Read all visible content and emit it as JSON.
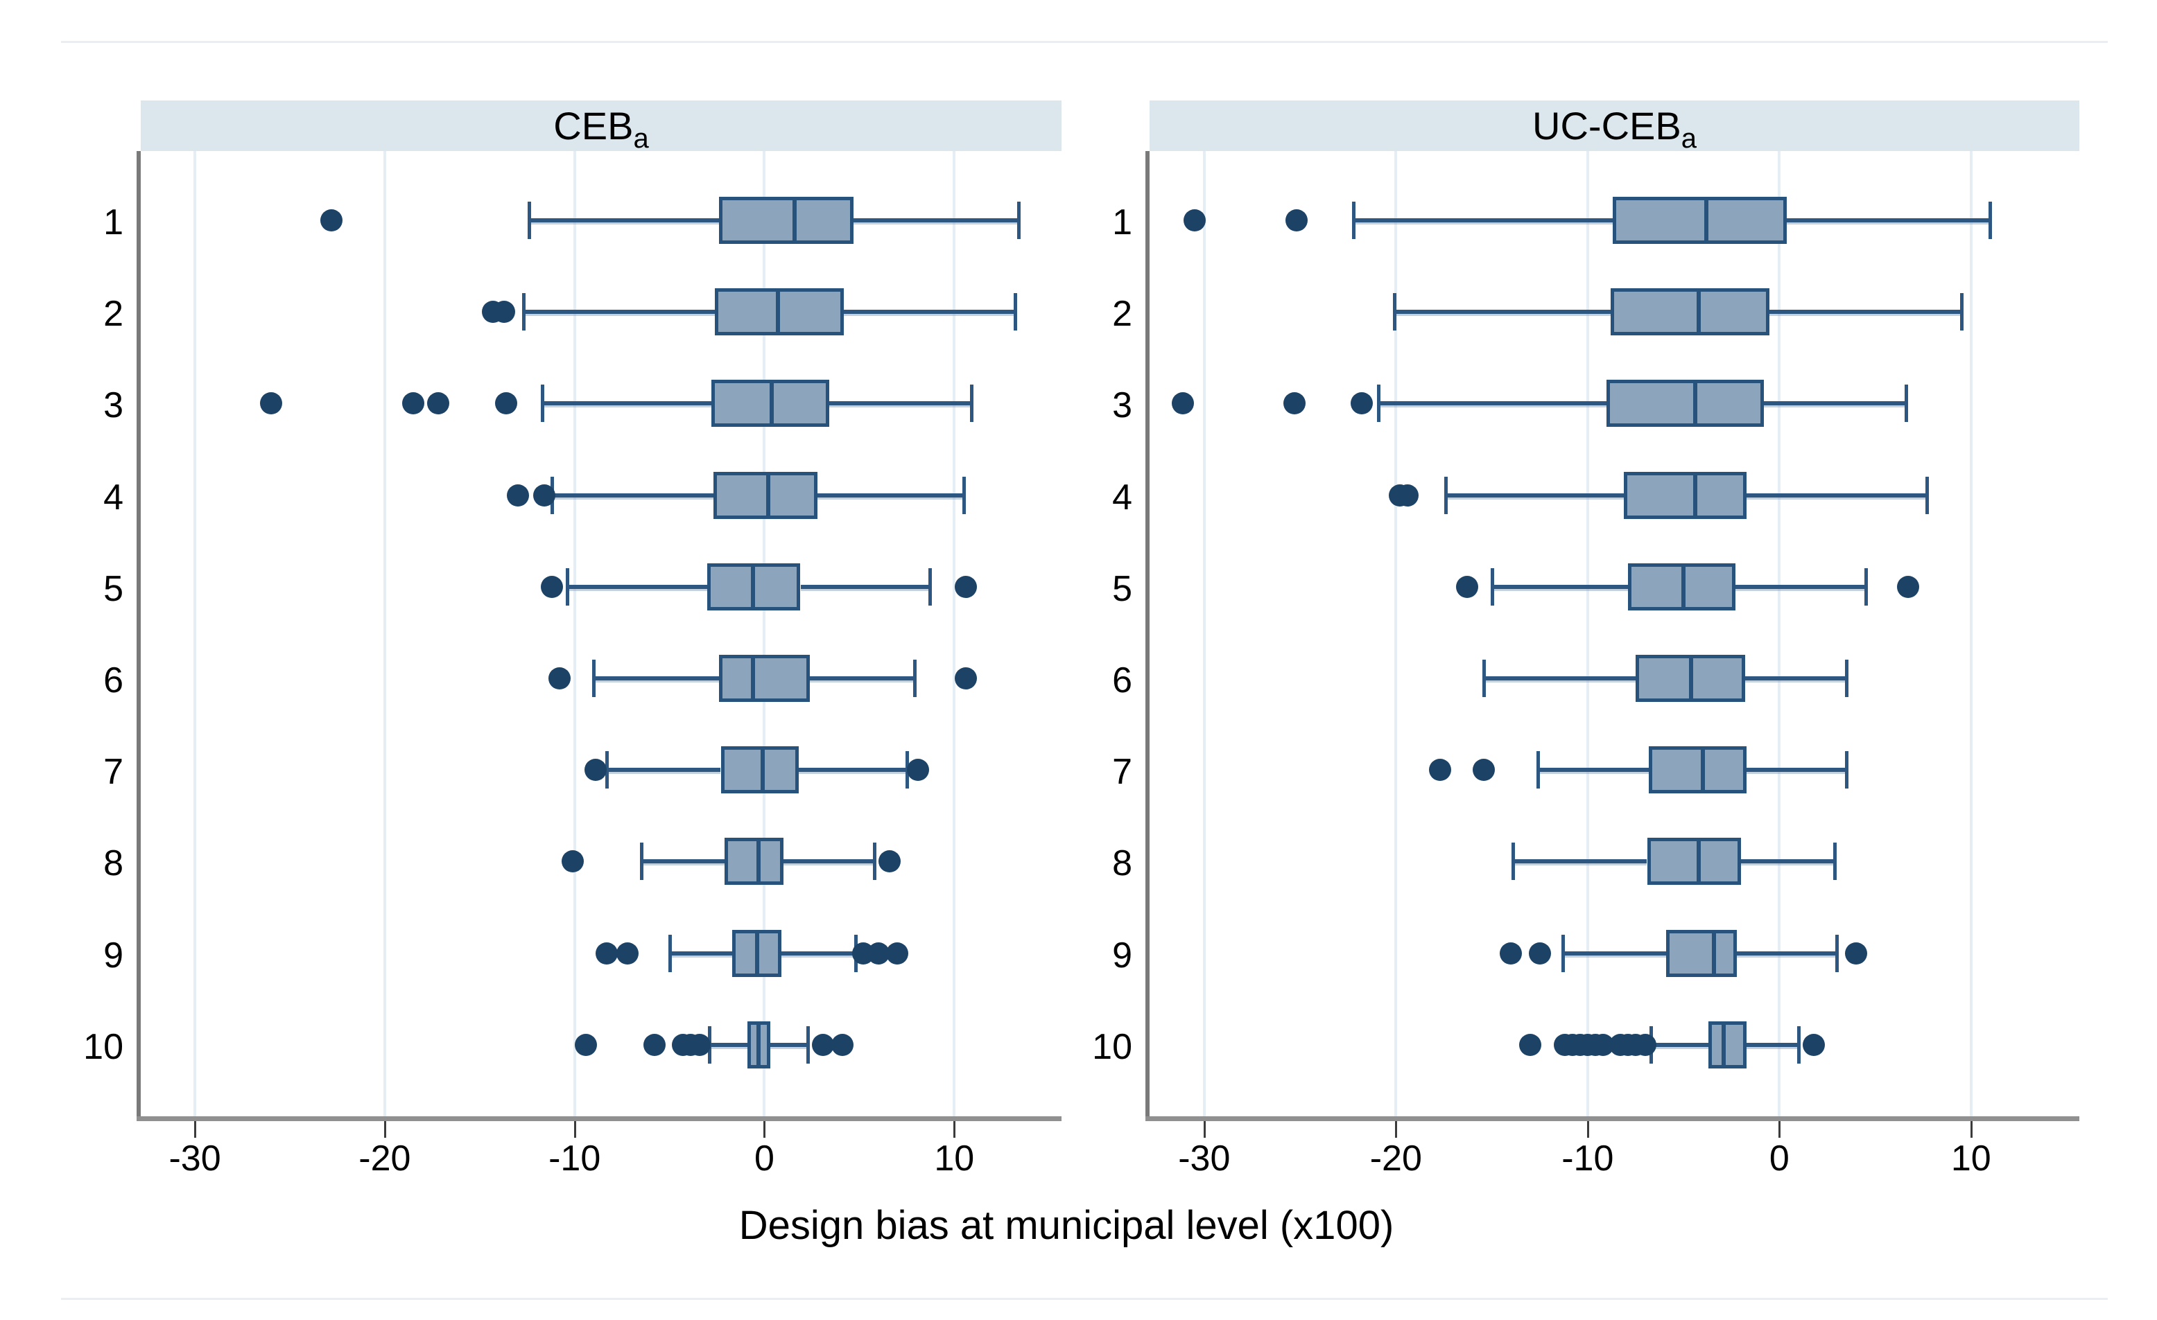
{
  "chart_data": {
    "type": "boxplot",
    "orientation": "horizontal",
    "xlabel": "Design bias at municipal level (x100)",
    "categories": [
      "1",
      "2",
      "3",
      "4",
      "5",
      "6",
      "7",
      "8",
      "9",
      "10"
    ],
    "x_ticks": [
      -30,
      -20,
      -10,
      0,
      10
    ],
    "x_tick_labels": [
      "-30",
      "-20",
      "-10",
      "0",
      "10"
    ],
    "xlim": [
      -32.85,
      15.65
    ],
    "grid": true,
    "legend": "none",
    "colors": {
      "header_bg": "#dce7ed",
      "box_fill": "#8ca4bc",
      "box_border": "#26527c",
      "median": "#26527c",
      "whisker": "#2d5780",
      "outlier": "#1c4266",
      "gridline": "#e6eef5",
      "y_axis": "#7a7a7a",
      "x_axis": "#909090",
      "tick": "#3c3c3c",
      "text": "#000000",
      "figure_border": "#e9eef2"
    },
    "panels": [
      {
        "title_main": "CEB",
        "title_sub": "a",
        "rows": [
          {
            "cat": "1",
            "whislo": -12.4,
            "q1": -2.4,
            "med": 1.6,
            "q3": 4.7,
            "whishi": 13.4,
            "outliers": [
              -22.8
            ]
          },
          {
            "cat": "2",
            "whislo": -12.7,
            "q1": -2.6,
            "med": 0.7,
            "q3": 4.2,
            "whishi": 13.2,
            "outliers": [
              -14.3,
              -13.7
            ]
          },
          {
            "cat": "3",
            "whislo": -11.7,
            "q1": -2.8,
            "med": 0.4,
            "q3": 3.4,
            "whishi": 10.9,
            "outliers": [
              -26.0,
              -18.5,
              -17.2,
              -13.6
            ]
          },
          {
            "cat": "4",
            "whislo": -11.2,
            "q1": -2.7,
            "med": 0.2,
            "q3": 2.8,
            "whishi": 10.5,
            "outliers": [
              -13.0,
              -11.6
            ]
          },
          {
            "cat": "5",
            "whislo": -10.4,
            "q1": -3.0,
            "med": -0.6,
            "q3": 1.9,
            "whishi": 8.7,
            "outliers": [
              -11.2,
              10.6
            ]
          },
          {
            "cat": "6",
            "whislo": -9.0,
            "q1": -2.4,
            "med": -0.6,
            "q3": 2.4,
            "whishi": 7.9,
            "outliers": [
              -10.8,
              10.6
            ]
          },
          {
            "cat": "7",
            "whislo": -8.3,
            "q1": -2.3,
            "med": -0.1,
            "q3": 1.8,
            "whishi": 7.5,
            "outliers": [
              -8.9,
              8.1
            ]
          },
          {
            "cat": "8",
            "whislo": -6.5,
            "q1": -2.1,
            "med": -0.3,
            "q3": 1.0,
            "whishi": 5.8,
            "outliers": [
              -10.1,
              6.6
            ]
          },
          {
            "cat": "9",
            "whislo": -5.0,
            "q1": -1.7,
            "med": -0.4,
            "q3": 0.9,
            "whishi": 4.8,
            "outliers": [
              -8.3,
              -7.2,
              5.2,
              6.0,
              7.0
            ]
          },
          {
            "cat": "10",
            "whislo": -2.9,
            "q1": -0.9,
            "med": -0.3,
            "q3": 0.3,
            "whishi": 2.3,
            "outliers": [
              -9.4,
              -5.8,
              -4.3,
              -3.9,
              -3.4,
              3.1,
              4.1
            ]
          }
        ]
      },
      {
        "title_main": "UC-CEB",
        "title_sub": "a",
        "rows": [
          {
            "cat": "1",
            "whislo": -22.2,
            "q1": -8.7,
            "med": -3.8,
            "q3": 0.4,
            "whishi": 11.0,
            "outliers": [
              -30.5,
              -25.2
            ]
          },
          {
            "cat": "2",
            "whislo": -20.1,
            "q1": -8.8,
            "med": -4.2,
            "q3": -0.5,
            "whishi": 9.5,
            "outliers": []
          },
          {
            "cat": "3",
            "whislo": -20.9,
            "q1": -9.0,
            "med": -4.4,
            "q3": -0.8,
            "whishi": 6.6,
            "outliers": [
              -31.1,
              -25.3,
              -21.8
            ]
          },
          {
            "cat": "4",
            "whislo": -17.4,
            "q1": -8.1,
            "med": -4.4,
            "q3": -1.7,
            "whishi": 7.7,
            "outliers": [
              -19.8,
              -19.4
            ]
          },
          {
            "cat": "5",
            "whislo": -15.0,
            "q1": -7.9,
            "med": -5.0,
            "q3": -2.3,
            "whishi": 4.5,
            "outliers": [
              -16.3,
              6.7
            ]
          },
          {
            "cat": "6",
            "whislo": -15.4,
            "q1": -7.5,
            "med": -4.6,
            "q3": -1.8,
            "whishi": 3.5,
            "outliers": []
          },
          {
            "cat": "7",
            "whislo": -12.6,
            "q1": -6.8,
            "med": -4.0,
            "q3": -1.7,
            "whishi": 3.5,
            "outliers": [
              -17.7,
              -15.4
            ]
          },
          {
            "cat": "8",
            "whislo": -13.9,
            "q1": -6.9,
            "med": -4.2,
            "q3": -2.0,
            "whishi": 2.9,
            "outliers": []
          },
          {
            "cat": "9",
            "whislo": -11.3,
            "q1": -5.9,
            "med": -3.4,
            "q3": -2.2,
            "whishi": 3.0,
            "outliers": [
              -14.0,
              -12.5,
              4.0
            ]
          },
          {
            "cat": "10",
            "whislo": -6.7,
            "q1": -3.7,
            "med": -2.9,
            "q3": -1.7,
            "whishi": 1.0,
            "outliers": [
              -13.0,
              -11.2,
              -10.8,
              -10.4,
              -10.0,
              -9.6,
              -9.2,
              -8.3,
              -7.9,
              -7.5,
              -7.0,
              1.8
            ]
          }
        ]
      }
    ]
  }
}
